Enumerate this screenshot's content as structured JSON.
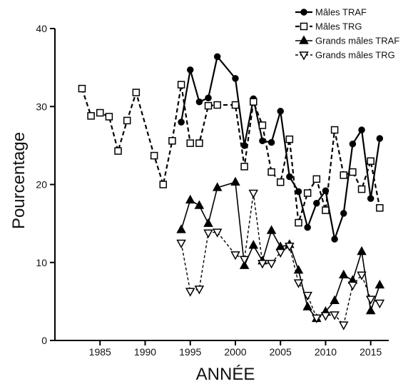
{
  "chart_data": {
    "type": "line",
    "title": "",
    "xlabel": "ANNÉE",
    "ylabel": "Pourcentage",
    "xlim": [
      1980,
      2017
    ],
    "ylim": [
      0,
      40
    ],
    "x_ticks": [
      "1985",
      "1990",
      "1995",
      "2000",
      "2005",
      "2010",
      "2015"
    ],
    "y_ticks": [
      "0",
      "10",
      "20",
      "30",
      "40"
    ],
    "grid": false,
    "legend_position": "top-right",
    "series": [
      {
        "name": "Mâles TRAF",
        "marker": "filled-circle",
        "line": "solid",
        "x": [
          1994,
          1995,
          1996,
          1997,
          1998,
          2000,
          2001,
          2002,
          2003,
          2004,
          2005,
          2006,
          2007,
          2008,
          2009,
          2010,
          2011,
          2012,
          2013,
          2014,
          2015,
          2016
        ],
        "values": [
          28.0,
          34.7,
          30.6,
          31.1,
          36.4,
          33.6,
          25.0,
          31.0,
          25.6,
          25.4,
          29.4,
          21.0,
          19.1,
          14.5,
          17.6,
          19.2,
          13.0,
          16.3,
          25.2,
          27.0,
          18.2,
          25.9
        ]
      },
      {
        "name": "Mâles TRG",
        "marker": "open-square",
        "line": "dashed",
        "x": [
          1983,
          1984,
          1985,
          1986,
          1987,
          1988,
          1989,
          1991,
          1992,
          1993,
          1994,
          1995,
          1996,
          1997,
          1998,
          2000,
          2001,
          2002,
          2003,
          2004,
          2005,
          2006,
          2007,
          2008,
          2009,
          2010,
          2011,
          2012,
          2013,
          2014,
          2015,
          2016
        ],
        "values": [
          32.3,
          28.8,
          29.2,
          28.7,
          24.3,
          28.2,
          31.8,
          23.7,
          20.0,
          25.6,
          32.8,
          25.3,
          25.3,
          30.1,
          30.2,
          30.2,
          22.3,
          30.6,
          27.6,
          21.6,
          20.3,
          25.8,
          15.1,
          18.9,
          20.7,
          16.7,
          27.0,
          21.2,
          21.6,
          19.4,
          23.0,
          17.0
        ]
      },
      {
        "name": "Grands mâles TRAF",
        "marker": "filled-triangle",
        "line": "solid-thin",
        "x": [
          1994,
          1995,
          1996,
          1997,
          1998,
          2000,
          2001,
          2002,
          2003,
          2004,
          2005,
          2006,
          2007,
          2008,
          2009,
          2010,
          2011,
          2012,
          2013,
          2014,
          2015,
          2016
        ],
        "values": [
          14.2,
          18.0,
          17.3,
          15.0,
          19.6,
          20.3,
          9.6,
          12.2,
          10.2,
          14.1,
          12.0,
          12.3,
          9.0,
          4.3,
          2.8,
          3.7,
          5.1,
          8.4,
          7.7,
          11.4,
          3.8,
          7.1
        ]
      },
      {
        "name": "Grands mâles TRG",
        "marker": "open-triangle-down",
        "line": "dashed-thin",
        "x": [
          1994,
          1995,
          1996,
          1997,
          1998,
          2000,
          2001,
          2002,
          2003,
          2004,
          2005,
          2006,
          2007,
          2008,
          2009,
          2010,
          2011,
          2012,
          2013,
          2014,
          2015,
          2016
        ],
        "values": [
          12.5,
          6.3,
          6.6,
          13.8,
          13.9,
          11.0,
          10.4,
          18.9,
          9.9,
          9.9,
          11.3,
          12.1,
          7.4,
          5.8,
          2.9,
          3.2,
          3.3,
          2.0,
          7.1,
          8.4,
          5.3,
          4.8
        ]
      }
    ]
  }
}
